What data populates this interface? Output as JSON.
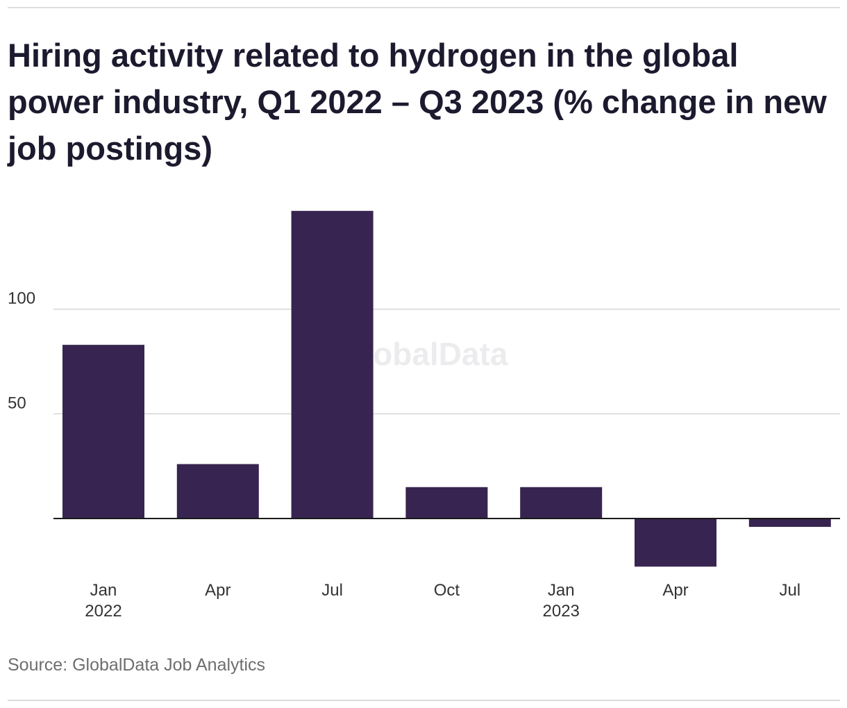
{
  "header": {
    "title": "Hiring activity related to hydrogen in the global power industry, Q1 2022 – Q3 2023 (% change in new job postings)"
  },
  "footer": {
    "source": "Source: GlobalData Job Analytics"
  },
  "watermark": "GlobalData",
  "colors": {
    "bar": "#372450",
    "grid": "#d6d6d6",
    "axis": "#1a1a1a",
    "text": "#1c1a2e",
    "tick": "#333333"
  },
  "chart_data": {
    "type": "bar",
    "title": "Hiring activity related to hydrogen in the global power industry, Q1 2022 – Q3 2023 (% change in new job postings)",
    "xlabel": "",
    "ylabel": "",
    "categories": [
      {
        "month": "Jan",
        "year": "2022"
      },
      {
        "month": "Apr",
        "year": ""
      },
      {
        "month": "Jul",
        "year": ""
      },
      {
        "month": "Oct",
        "year": ""
      },
      {
        "month": "Jan",
        "year": "2023"
      },
      {
        "month": "Apr",
        "year": ""
      },
      {
        "month": "Jul",
        "year": ""
      }
    ],
    "values": [
      83,
      26,
      147,
      15,
      15,
      -23,
      -4
    ],
    "yticks": [
      50,
      100
    ],
    "ylim": [
      -30,
      150
    ],
    "grid": true,
    "legend": "none"
  }
}
